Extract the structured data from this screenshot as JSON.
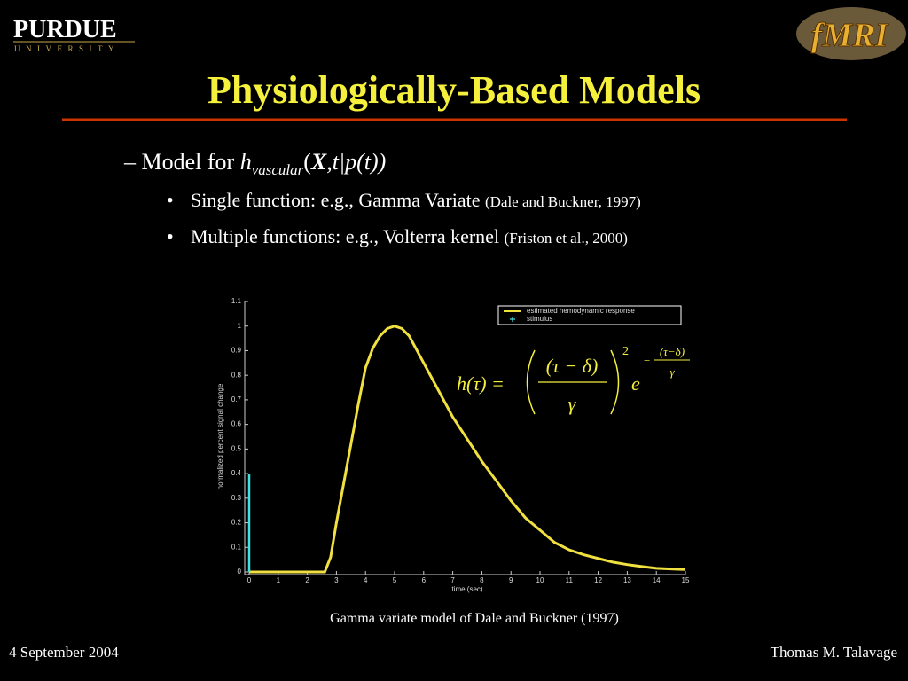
{
  "logo": {
    "name": "PURDUE",
    "sub": "UNIVERSITY",
    "right": "fMRI"
  },
  "title": "Physiologically-Based Models",
  "model_line": {
    "lead": "Model for",
    "h": "h",
    "sub": "vascular",
    "open": "(",
    "X": "X",
    "rest": ",t|p(t))"
  },
  "bullets": [
    {
      "text": "Single function:  e.g., Gamma Variate",
      "cite": "(Dale and Buckner, 1997)"
    },
    {
      "text": "Multiple functions:  e.g., Volterra kernel",
      "cite": "(Friston et al., 2000)"
    }
  ],
  "formula": {
    "lhs": "h(τ) =",
    "num": "(τ − δ)",
    "den": "γ",
    "power": "2",
    "e": "e",
    "minus": "−",
    "exp_num": "(τ−δ)",
    "exp_den": "γ"
  },
  "caption": "Gamma variate model of Dale and Buckner (1997)",
  "footer": {
    "date": "4 September 2004",
    "author": "Thomas M. Talavage"
  },
  "chart_data": {
    "type": "line",
    "x_label": "time (sec)",
    "y_label": "normalized percent signal change",
    "xlim": [
      0,
      15
    ],
    "ylim": [
      0,
      1.1
    ],
    "xticks": [
      0,
      1,
      2,
      3,
      4,
      5,
      6,
      7,
      8,
      9,
      10,
      11,
      12,
      13,
      14,
      15
    ],
    "yticks": [
      0,
      0.1,
      0.2,
      0.3,
      0.4,
      0.5,
      0.6,
      0.7,
      0.8,
      0.9,
      1,
      1.1
    ],
    "legend": "upper right",
    "series": [
      {
        "name": "estimated hemodynamic response",
        "color": "#f0e040",
        "x": [
          0,
          2.6,
          2.8,
          3,
          3.25,
          3.5,
          3.75,
          4,
          4.25,
          4.5,
          4.75,
          5,
          5.25,
          5.5,
          6,
          6.5,
          7,
          7.5,
          8,
          8.5,
          9,
          9.5,
          10,
          10.5,
          11,
          11.5,
          12,
          12.5,
          13,
          13.5,
          14,
          14.5,
          15
        ],
        "values": [
          0,
          0,
          0.06,
          0.2,
          0.36,
          0.52,
          0.68,
          0.83,
          0.91,
          0.96,
          0.99,
          1.0,
          0.99,
          0.96,
          0.85,
          0.74,
          0.63,
          0.54,
          0.45,
          0.37,
          0.29,
          0.22,
          0.17,
          0.12,
          0.09,
          0.07,
          0.055,
          0.04,
          0.03,
          0.022,
          0.015,
          0.012,
          0.01
        ]
      },
      {
        "name": "stimulus",
        "color": "#40e0e0",
        "x": [
          0,
          0
        ],
        "values": [
          0,
          0.4
        ]
      }
    ]
  }
}
